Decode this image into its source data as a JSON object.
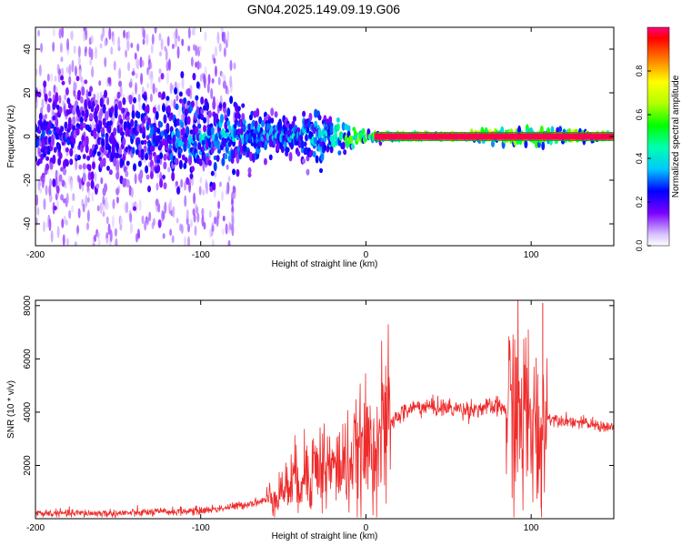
{
  "title": "GN04.2025.149.09.19.G06",
  "colors": {
    "snr_line": "#ee2b2b",
    "background": "#ffffff"
  },
  "chart_data": [
    {
      "type": "heatmap",
      "title": "GN04.2025.149.09.19.G06",
      "xlabel": "Height of straight line (km)",
      "ylabel": "Frequency (Hz)",
      "xlim": [
        -200,
        150
      ],
      "ylim": [
        -50,
        50
      ],
      "x_ticks": [
        -200,
        -100,
        0,
        100
      ],
      "y_ticks": [
        -40,
        -20,
        0,
        20,
        40
      ],
      "colorbar": {
        "label": "Normalized spectral amplitude",
        "range": [
          0,
          1
        ],
        "ticks": [
          0.0,
          0.2,
          0.4,
          0.6,
          0.8
        ],
        "colormap": "rainbow"
      },
      "description_points": [
        {
          "x": -200,
          "freq_spread_hz": 45,
          "peak_amplitude": 0.3
        },
        {
          "x": -150,
          "freq_spread_hz": 45,
          "peak_amplitude": 0.3
        },
        {
          "x": -100,
          "freq_spread_hz": 40,
          "peak_amplitude": 0.45
        },
        {
          "x": -50,
          "freq_spread_hz": 12,
          "peak_amplitude": 0.45
        },
        {
          "x": -25,
          "freq_spread_hz": 25,
          "peak_amplitude": 0.5
        },
        {
          "x": 0,
          "freq_spread_hz": 3,
          "peak_amplitude": 0.85
        },
        {
          "x": 50,
          "freq_spread_hz": 1,
          "peak_amplitude": 0.95
        },
        {
          "x": 100,
          "freq_spread_hz": 8,
          "peak_amplitude": 0.9
        },
        {
          "x": 150,
          "freq_spread_hz": 1,
          "peak_amplitude": 0.95
        }
      ]
    },
    {
      "type": "line",
      "xlabel": "Height of straight line (km)",
      "ylabel": "SNR (10 * v/v)",
      "xlim": [
        -200,
        150
      ],
      "ylim": [
        0,
        8200
      ],
      "x_ticks": [
        -200,
        -100,
        0,
        100
      ],
      "y_ticks": [
        2000,
        4000,
        6000,
        8000
      ],
      "series": [
        {
          "x": [
            -200,
            -150,
            -100,
            -80,
            -60,
            -50,
            -40,
            -30,
            -20,
            -10,
            0,
            10,
            20,
            30,
            40,
            60,
            80,
            90,
            100,
            105,
            108,
            110,
            120,
            130,
            150
          ],
          "values": [
            200,
            200,
            300,
            450,
            700,
            1100,
            1600,
            2000,
            1900,
            2100,
            2600,
            3200,
            3900,
            4200,
            4200,
            4100,
            4200,
            4000,
            3600,
            3000,
            3500,
            3800,
            3700,
            3600,
            3400
          ]
        }
      ],
      "annotations": [
        {
          "x": 107,
          "y": 8100,
          "note": "spike"
        },
        {
          "x": 106,
          "y": 400,
          "note": "dip"
        }
      ]
    }
  ]
}
